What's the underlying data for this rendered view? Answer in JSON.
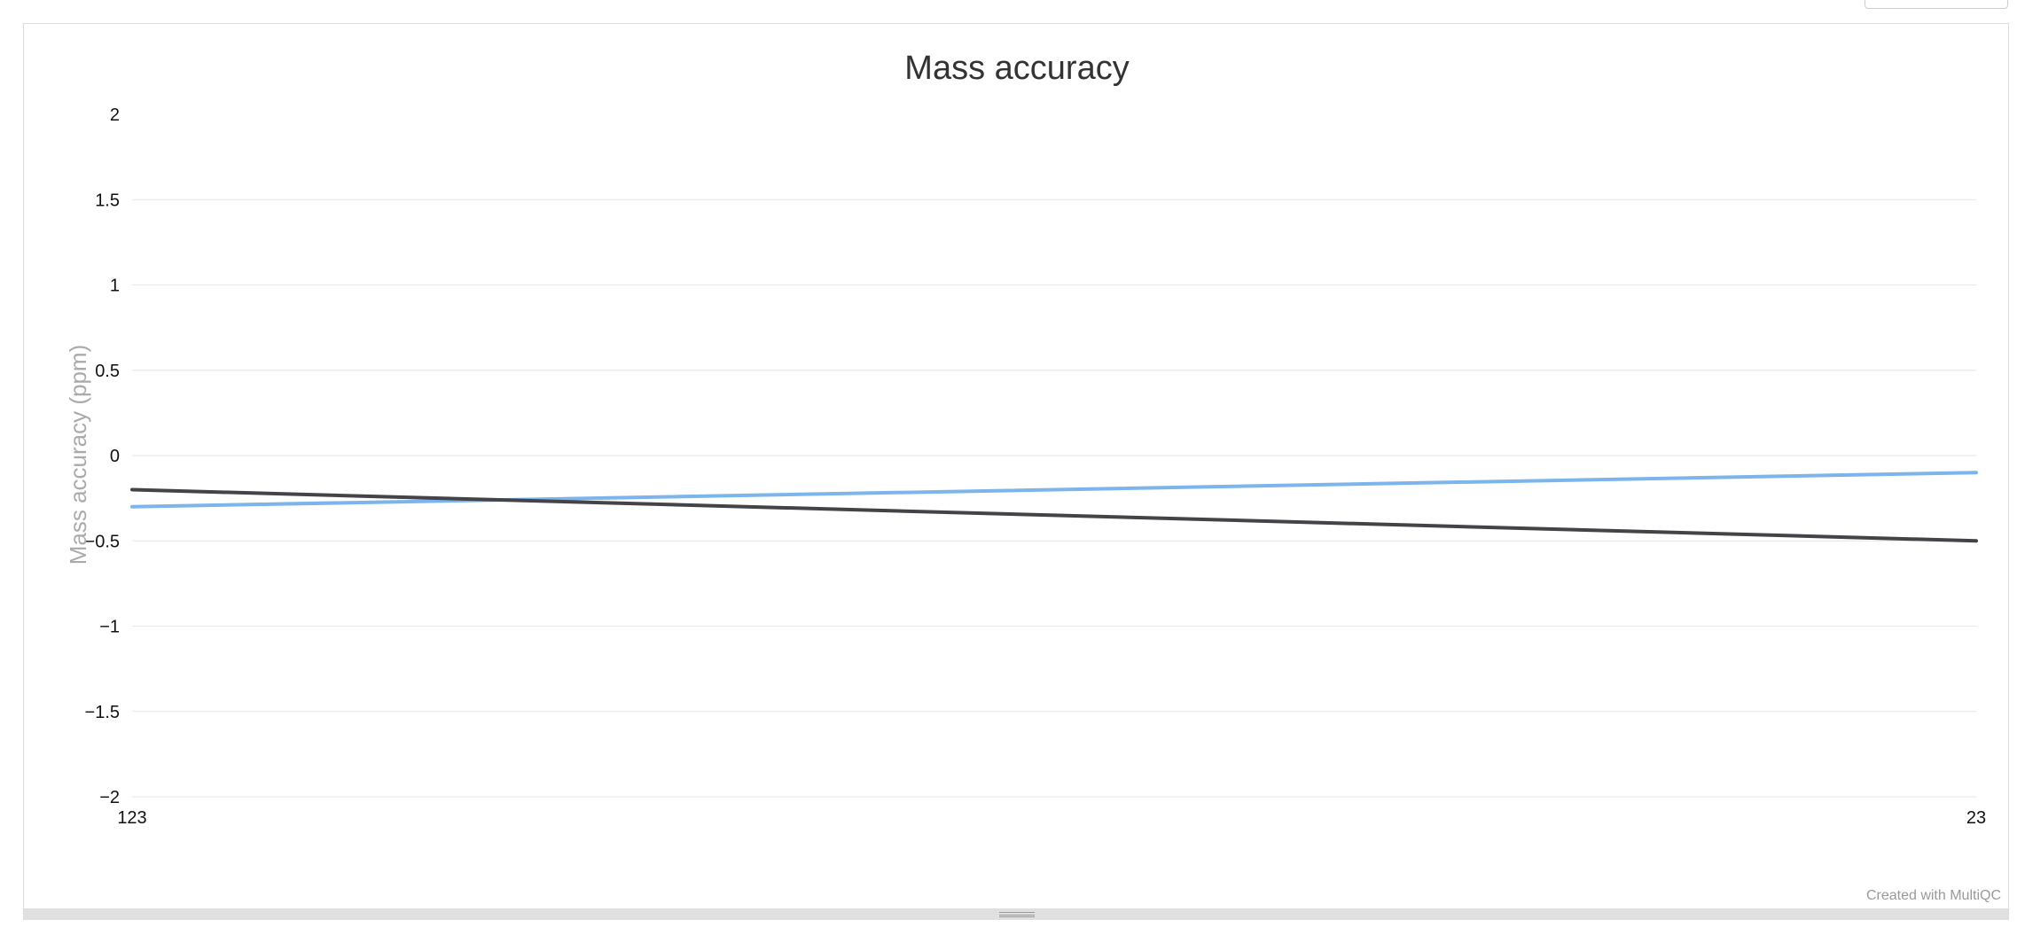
{
  "chart_data": {
    "type": "line",
    "title": "Mass accuracy",
    "xlabel": "",
    "ylabel": "Mass accuracy (ppm)",
    "x": [
      "123",
      "23"
    ],
    "ylim": [
      -2,
      2
    ],
    "yticks": [
      "2",
      "1.5",
      "1",
      "0.5",
      "0",
      "−0.5",
      "−1",
      "−1.5",
      "−2"
    ],
    "ytick_values": [
      2,
      1.5,
      1,
      0.5,
      0,
      -0.5,
      -1,
      -1.5,
      -2
    ],
    "grid": true,
    "series": [
      {
        "color": "#7cb5ec",
        "values": [
          -0.3,
          -0.1
        ]
      },
      {
        "color": "#434348",
        "values": [
          -0.2,
          -0.5
        ]
      }
    ]
  },
  "credits": "Created with MultiQC"
}
